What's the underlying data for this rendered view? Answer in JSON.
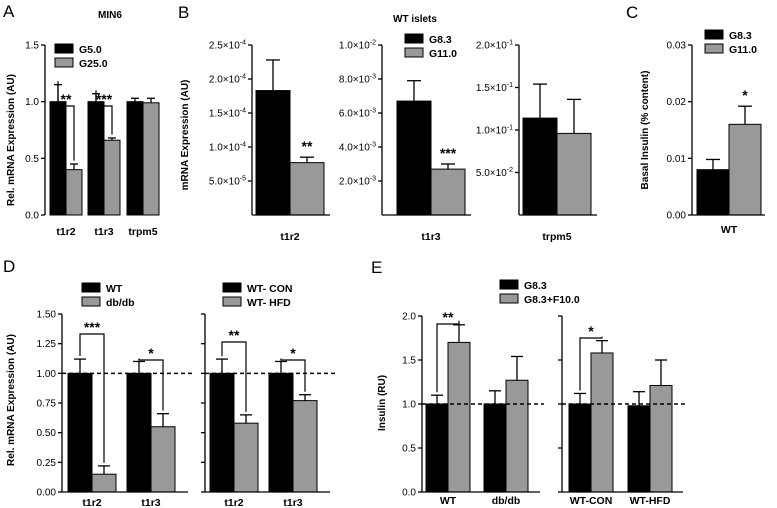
{
  "chart_data": [
    {
      "panel": "A",
      "type": "bar",
      "title": "MIN6",
      "ylabel": "Rel. mRNA Expression (AU)",
      "ylim": [
        0,
        1.5
      ],
      "yticks": [
        "0.0",
        "0.5",
        "1.0",
        "1.5"
      ],
      "categories": [
        "t1r2",
        "t1r3",
        "trpm5"
      ],
      "series": [
        {
          "name": "G5.0",
          "color": "#000000",
          "values": [
            1.0,
            1.0,
            1.0
          ],
          "errors": [
            0.15,
            0.07,
            0.03
          ]
        },
        {
          "name": "G25.0",
          "color": "#999999",
          "values": [
            0.4,
            0.66,
            0.99
          ],
          "errors": [
            0.05,
            0.02,
            0.04
          ]
        }
      ],
      "significance": [
        {
          "category": "t1r2",
          "label": "**"
        },
        {
          "category": "t1r3",
          "label": "***"
        }
      ]
    },
    {
      "panel": "B",
      "type": "bar",
      "title": "WT islets",
      "ylabel": "mRNA Expression (AU)",
      "subplots": [
        {
          "category": "t1r2",
          "ylim": [
            0,
            0.00025
          ],
          "yticks": [
            {
              "m": "2.5",
              "e": "-4"
            },
            {
              "m": "2.0",
              "e": "-4"
            },
            {
              "m": "1.5",
              "e": "-4"
            },
            {
              "m": "1.0",
              "e": "-4"
            },
            {
              "m": "5.0",
              "e": "-5"
            }
          ],
          "series": [
            {
              "name": "G8.3",
              "value": 0.000183,
              "error": 4.5e-05
            },
            {
              "name": "G11.0",
              "value": 7.7e-05,
              "error": 8e-06
            }
          ],
          "significance": "**"
        },
        {
          "category": "t1r3",
          "ylim": [
            0,
            0.01
          ],
          "yticks": [
            {
              "m": "1.0",
              "e": "-2"
            },
            {
              "m": "8.0",
              "e": "-3"
            },
            {
              "m": "6.0",
              "e": "-3"
            },
            {
              "m": "4.0",
              "e": "-3"
            },
            {
              "m": "2.0",
              "e": "-3"
            }
          ],
          "series": [
            {
              "name": "G8.3",
              "value": 0.0067,
              "error": 0.0012
            },
            {
              "name": "G11.0",
              "value": 0.0027,
              "error": 0.0003
            }
          ],
          "significance": "***"
        },
        {
          "category": "trpm5",
          "ylim": [
            0,
            0.2
          ],
          "yticks": [
            {
              "m": "2.0",
              "e": "-1"
            },
            {
              "m": "1.5",
              "e": "-1"
            },
            {
              "m": "1.0",
              "e": "-1"
            },
            {
              "m": "5.0",
              "e": "-2"
            }
          ],
          "series": [
            {
              "name": "G8.3",
              "value": 0.114,
              "error": 0.04
            },
            {
              "name": "G11.0",
              "value": 0.096,
              "error": 0.04
            }
          ],
          "significance": ""
        }
      ],
      "legend": [
        "G8.3",
        "G11.0"
      ]
    },
    {
      "panel": "C",
      "type": "bar",
      "ylabel": "Basal Insulin (% content)",
      "ylim": [
        0,
        0.03
      ],
      "yticks": [
        "0.03",
        "0.02",
        "0.01",
        "0.00"
      ],
      "categories": [
        "WT"
      ],
      "series": [
        {
          "name": "G8.3",
          "color": "#000000",
          "values": [
            0.008
          ],
          "errors": [
            0.0018
          ]
        },
        {
          "name": "G11.0",
          "color": "#999999",
          "values": [
            0.016
          ],
          "errors": [
            0.0032
          ]
        }
      ],
      "significance": "*"
    },
    {
      "panel": "D",
      "type": "bar",
      "ylabel": "Rel. mRNA Expression (AU)",
      "ylim": [
        0,
        1.5
      ],
      "yticks": [
        "1.50",
        "1.25",
        "1.00",
        "0.75",
        "0.50",
        "0.25",
        "0.00"
      ],
      "reference_line": 1.0,
      "groups": [
        {
          "legend": [
            "WT",
            "db/db"
          ],
          "categories": [
            "t1r2",
            "t1r3"
          ],
          "values_a": [
            1.0,
            1.0
          ],
          "errors_a": [
            0.12,
            0.1
          ],
          "values_b": [
            0.15,
            0.55
          ],
          "errors_b": [
            0.07,
            0.11
          ],
          "significance": [
            "***",
            "*"
          ]
        },
        {
          "legend": [
            "WT- CON",
            "WT- HFD"
          ],
          "categories": [
            "t1r2",
            "t1r3"
          ],
          "values_a": [
            1.0,
            1.0
          ],
          "errors_a": [
            0.12,
            0.1
          ],
          "values_b": [
            0.58,
            0.77
          ],
          "errors_b": [
            0.07,
            0.05
          ],
          "significance": [
            "**",
            "*"
          ]
        }
      ]
    },
    {
      "panel": "E",
      "type": "bar",
      "ylabel": "Insulin (RU)",
      "ylim": [
        0,
        2.0
      ],
      "yticks": [
        "2.0",
        "1.5",
        "1.0",
        "0.5",
        "0.0"
      ],
      "reference_line": 1.0,
      "legend": [
        "G8.3",
        "G8.3+F10.0"
      ],
      "groups": [
        {
          "categories": [
            "WT",
            "db/db"
          ],
          "values_a": [
            1.0,
            1.0
          ],
          "errors_a": [
            0.1,
            0.15
          ],
          "values_b": [
            1.7,
            1.27
          ],
          "errors_b": [
            0.2,
            0.27
          ],
          "significance": [
            "**",
            ""
          ]
        },
        {
          "categories": [
            "WT-CON",
            "WT-HFD"
          ],
          "values_a": [
            1.0,
            0.98
          ],
          "errors_a": [
            0.12,
            0.16
          ],
          "values_b": [
            1.58,
            1.21
          ],
          "errors_b": [
            0.14,
            0.29
          ],
          "significance": [
            "*",
            ""
          ]
        }
      ]
    }
  ],
  "colors": {
    "series_a": "#000000",
    "series_b": "#999999"
  }
}
